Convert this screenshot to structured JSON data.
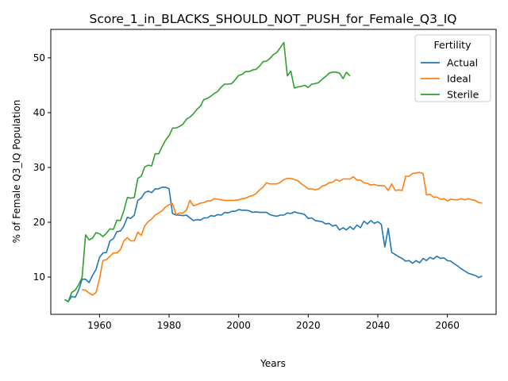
{
  "chart_data": {
    "type": "line",
    "title": "Score_1_in_BLACKS_SHOULD_NOT_PUSH_for_Female_Q3_IQ",
    "xlabel": "Years",
    "ylabel": "% of Female Q3_IQ Population",
    "xlim": [
      1946,
      2074
    ],
    "ylim": [
      3.2,
      55.2
    ],
    "xticks": [
      1960,
      1980,
      2000,
      2020,
      2040,
      2060
    ],
    "yticks": [
      10,
      20,
      30,
      40,
      50
    ],
    "grid": false,
    "legend": {
      "title": "Fertility",
      "position": "top-right"
    },
    "series": [
      {
        "name": "Actual",
        "color": "#1f77b4",
        "x": [
          1950,
          1951,
          1952,
          1953,
          1954,
          1955,
          1956,
          1957,
          1958,
          1959,
          1960,
          1961,
          1962,
          1963,
          1964,
          1965,
          1966,
          1967,
          1968,
          1969,
          1970,
          1971,
          1972,
          1973,
          1974,
          1975,
          1976,
          1977,
          1978,
          1979,
          1980,
          1981,
          1982,
          1983,
          1984,
          1985,
          1986,
          1987,
          1988,
          1989,
          1990,
          1991,
          1992,
          1993,
          1994,
          1995,
          1996,
          1997,
          1998,
          1999,
          2000,
          2001,
          2002,
          2003,
          2004,
          2005,
          2006,
          2007,
          2008,
          2009,
          2010,
          2011,
          2012,
          2013,
          2014,
          2015,
          2016,
          2017,
          2018,
          2019,
          2020,
          2021,
          2022,
          2023,
          2024,
          2025,
          2026,
          2027,
          2028,
          2029,
          2030,
          2031,
          2032,
          2033,
          2034,
          2035,
          2036,
          2037,
          2038,
          2039,
          2040,
          2041,
          2042,
          2043,
          2044,
          2045,
          2046,
          2047,
          2048,
          2049,
          2050,
          2051,
          2052,
          2053,
          2054,
          2055,
          2056,
          2057,
          2058,
          2059,
          2060,
          2061,
          2062,
          2063,
          2064,
          2065,
          2066,
          2067,
          2068,
          2069,
          2070
        ],
        "values": [
          5.9,
          5.5,
          6.5,
          6.3,
          7.6,
          9.6,
          9.6,
          9.0,
          10.3,
          11.4,
          13.6,
          14.4,
          14.5,
          16.6,
          17.0,
          18.3,
          18.4,
          19.3,
          20.9,
          20.7,
          21.3,
          24.0,
          24.4,
          25.4,
          25.7,
          25.4,
          26.1,
          26.1,
          26.4,
          26.4,
          26.1,
          21.6,
          21.3,
          21.3,
          21.2,
          21.3,
          20.8,
          20.3,
          20.5,
          20.4,
          20.8,
          20.8,
          21.2,
          21.1,
          21.4,
          21.3,
          21.8,
          21.7,
          22.0,
          22.0,
          22.3,
          22.2,
          22.2,
          22.1,
          21.8,
          21.9,
          21.8,
          21.8,
          21.8,
          21.4,
          21.2,
          21.1,
          21.3,
          21.3,
          21.7,
          21.6,
          21.9,
          21.7,
          21.6,
          21.4,
          20.7,
          20.8,
          20.3,
          20.2,
          20.1,
          19.7,
          19.8,
          19.3,
          19.5,
          18.6,
          19.0,
          18.6,
          19.2,
          18.7,
          19.5,
          19.0,
          20.2,
          19.7,
          20.3,
          19.8,
          20.1,
          19.6,
          15.5,
          18.9,
          14.5,
          14.1,
          13.7,
          13.4,
          12.9,
          13.0,
          12.5,
          13.0,
          12.6,
          13.4,
          13.0,
          13.6,
          13.3,
          13.8,
          13.4,
          13.5,
          13.0,
          12.9,
          12.4,
          12.0,
          11.5,
          11.1,
          10.7,
          10.5,
          10.3,
          9.9,
          10.2
        ]
      },
      {
        "name": "Ideal",
        "color": "#ff7f0e",
        "x": [
          1955,
          1956,
          1957,
          1958,
          1959,
          1960,
          1961,
          1962,
          1963,
          1964,
          1965,
          1966,
          1967,
          1968,
          1969,
          1970,
          1971,
          1972,
          1973,
          1974,
          1975,
          1976,
          1977,
          1978,
          1979,
          1980,
          1981,
          1982,
          1983,
          1984,
          1985,
          1986,
          1987,
          1988,
          1989,
          1990,
          1991,
          1992,
          1993,
          1994,
          1995,
          1996,
          1997,
          1998,
          1999,
          2000,
          2001,
          2002,
          2003,
          2004,
          2005,
          2006,
          2007,
          2008,
          2009,
          2010,
          2011,
          2012,
          2013,
          2014,
          2015,
          2016,
          2017,
          2018,
          2019,
          2020,
          2021,
          2022,
          2023,
          2024,
          2025,
          2026,
          2027,
          2028,
          2029,
          2030,
          2031,
          2032,
          2033,
          2034,
          2035,
          2036,
          2037,
          2038,
          2039,
          2040,
          2041,
          2042,
          2043,
          2044,
          2045,
          2046,
          2047,
          2048,
          2049,
          2050,
          2051,
          2052,
          2053,
          2054,
          2055,
          2056,
          2057,
          2058,
          2059,
          2060,
          2061,
          2062,
          2063,
          2064,
          2065,
          2066,
          2067,
          2068,
          2069,
          2070
        ],
        "values": [
          7.7,
          7.6,
          7.1,
          6.7,
          7.2,
          9.7,
          13.0,
          13.2,
          13.8,
          14.4,
          14.4,
          15.0,
          16.6,
          17.2,
          16.6,
          16.6,
          18.2,
          17.6,
          19.3,
          20.1,
          20.6,
          21.3,
          21.7,
          22.1,
          22.8,
          23.2,
          23.4,
          21.4,
          21.7,
          21.7,
          22.2,
          24.0,
          23.0,
          23.2,
          23.5,
          23.6,
          23.9,
          23.9,
          24.3,
          24.2,
          24.1,
          24.0,
          24.0,
          24.0,
          24.0,
          24.1,
          24.3,
          24.4,
          24.7,
          24.9,
          25.2,
          25.9,
          26.4,
          27.2,
          27.0,
          27.0,
          27.0,
          27.3,
          27.8,
          28.0,
          28.0,
          27.8,
          27.6,
          27.0,
          26.6,
          26.1,
          26.1,
          25.9,
          26.1,
          26.6,
          26.8,
          27.2,
          27.3,
          27.8,
          27.5,
          27.9,
          27.9,
          27.9,
          28.3,
          27.7,
          27.7,
          27.2,
          27.1,
          26.8,
          26.9,
          26.7,
          26.7,
          26.6,
          25.8,
          27.0,
          25.8,
          25.9,
          25.8,
          28.4,
          28.4,
          28.9,
          29.0,
          29.1,
          28.9,
          25.0,
          25.1,
          24.6,
          24.6,
          24.2,
          24.3,
          23.9,
          24.2,
          24.1,
          24.1,
          24.3,
          24.1,
          24.3,
          24.1,
          24.0,
          23.6,
          23.5
        ]
      },
      {
        "name": "Sterile",
        "color": "#2ca02c",
        "x": [
          1950,
          1951,
          1952,
          1953,
          1954,
          1955,
          1956,
          1957,
          1958,
          1959,
          1960,
          1961,
          1962,
          1963,
          1964,
          1965,
          1966,
          1967,
          1968,
          1969,
          1970,
          1971,
          1972,
          1973,
          1974,
          1975,
          1976,
          1977,
          1978,
          1979,
          1980,
          1981,
          1982,
          1983,
          1984,
          1985,
          1986,
          1987,
          1988,
          1989,
          1990,
          1991,
          1992,
          1993,
          1994,
          1995,
          1996,
          1997,
          1998,
          1999,
          2000,
          2001,
          2002,
          2003,
          2004,
          2005,
          2006,
          2007,
          2008,
          2009,
          2010,
          2011,
          2012,
          2013,
          2014,
          2015,
          2016,
          2017,
          2018,
          2019,
          2020,
          2021,
          2022,
          2023,
          2024,
          2025,
          2026,
          2027,
          2028,
          2029,
          2030,
          2031,
          2032
        ],
        "values": [
          5.9,
          5.5,
          7.2,
          7.6,
          8.6,
          9.9,
          17.7,
          16.8,
          17.1,
          18.1,
          17.9,
          17.4,
          18.0,
          18.8,
          18.7,
          20.4,
          20.3,
          22.1,
          24.5,
          24.4,
          24.5,
          28.0,
          28.4,
          30.1,
          30.4,
          30.3,
          32.5,
          32.5,
          33.8,
          35.0,
          35.8,
          37.2,
          37.2,
          37.5,
          37.9,
          38.8,
          39.2,
          39.8,
          40.6,
          41.2,
          42.4,
          42.6,
          43.0,
          43.5,
          43.9,
          44.7,
          45.2,
          45.2,
          45.3,
          46.0,
          46.8,
          47.0,
          47.5,
          47.5,
          47.8,
          47.9,
          48.5,
          49.3,
          49.4,
          49.9,
          50.6,
          51.0,
          51.9,
          52.8,
          46.7,
          47.6,
          44.5,
          44.7,
          44.8,
          45.0,
          44.6,
          45.2,
          45.3,
          45.5,
          46.1,
          46.6,
          47.2,
          47.4,
          47.4,
          47.2,
          46.2,
          47.4,
          46.7
        ]
      }
    ]
  }
}
